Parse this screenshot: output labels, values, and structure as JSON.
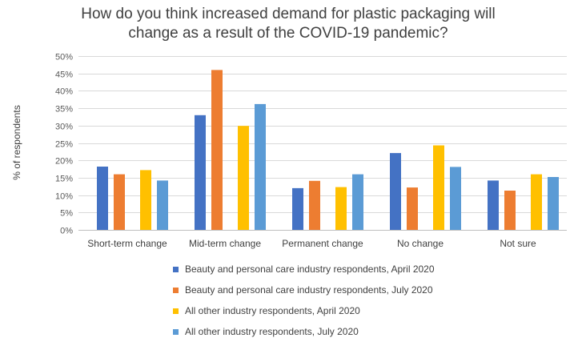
{
  "chart_data": {
    "type": "bar",
    "title_lines": [
      "How do you think increased demand for plastic packaging will",
      "change as a result of the COVID-19 pandemic?"
    ],
    "xlabel": "",
    "ylabel": "% of respondents",
    "ylim": [
      0,
      50
    ],
    "ytick_step": 5,
    "ytick_labels": [
      "0%",
      "5%",
      "10%",
      "15%",
      "20%",
      "25%",
      "30%",
      "35%",
      "40%",
      "45%",
      "50%"
    ],
    "grid": true,
    "legend_position": "bottom",
    "categories": [
      "Short-term change",
      "Mid-term change",
      "Permanent change",
      "No change",
      "Not sure"
    ],
    "series": [
      {
        "name": "Beauty and personal care industry respondents, April 2020",
        "color": "#4472C4",
        "values": [
          18.2,
          33,
          12,
          22.1,
          14.2
        ]
      },
      {
        "name": "Beauty and personal care industry respondents, July 2020",
        "color": "#ED7D31",
        "values": [
          16,
          46,
          14.1,
          12.2,
          11.3
        ]
      },
      {
        "name": "All other industry respondents, April 2020",
        "color": "#FFC000",
        "values": [
          17.2,
          29.9,
          12.3,
          24.3,
          16
        ]
      },
      {
        "name": "All other industry respondents, July 2020",
        "color": "#5B9BD5",
        "values": [
          14.2,
          36.2,
          16,
          18.1,
          15.2
        ]
      }
    ]
  }
}
